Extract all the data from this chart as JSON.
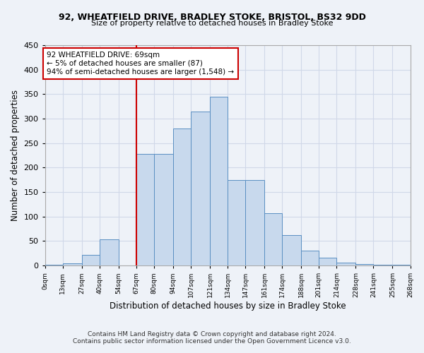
{
  "title_line1": "92, WHEATFIELD DRIVE, BRADLEY STOKE, BRISTOL, BS32 9DD",
  "title_line2": "Size of property relative to detached houses in Bradley Stoke",
  "xlabel": "Distribution of detached houses by size in Bradley Stoke",
  "ylabel": "Number of detached properties",
  "footer_line1": "Contains HM Land Registry data © Crown copyright and database right 2024.",
  "footer_line2": "Contains public sector information licensed under the Open Government Licence v3.0.",
  "bin_edges": [
    0,
    13,
    27,
    40,
    54,
    67,
    80,
    94,
    107,
    121,
    134,
    147,
    161,
    174,
    188,
    201,
    214,
    228,
    241,
    255,
    268
  ],
  "bar_heights": [
    2,
    5,
    21,
    53,
    0,
    228,
    228,
    280,
    315,
    345,
    175,
    175,
    107,
    62,
    30,
    16,
    6,
    3,
    2,
    1
  ],
  "bar_color": "#c8d9ed",
  "bar_edge_color": "#5a8fc2",
  "vline_x": 67,
  "vline_color": "#cc0000",
  "annotation_text": "92 WHEATFIELD DRIVE: 69sqm\n← 5% of detached houses are smaller (87)\n94% of semi-detached houses are larger (1,548) →",
  "annotation_box_color": "#ffffff",
  "annotation_box_edge": "#cc0000",
  "background_color": "#eef2f8",
  "grid_color": "#d0d8e8",
  "ylim": [
    0,
    450
  ],
  "tick_labels": [
    "0sqm",
    "13sqm",
    "27sqm",
    "40sqm",
    "54sqm",
    "67sqm",
    "80sqm",
    "94sqm",
    "107sqm",
    "121sqm",
    "134sqm",
    "147sqm",
    "161sqm",
    "174sqm",
    "188sqm",
    "201sqm",
    "214sqm",
    "228sqm",
    "241sqm",
    "255sqm",
    "268sqm"
  ]
}
